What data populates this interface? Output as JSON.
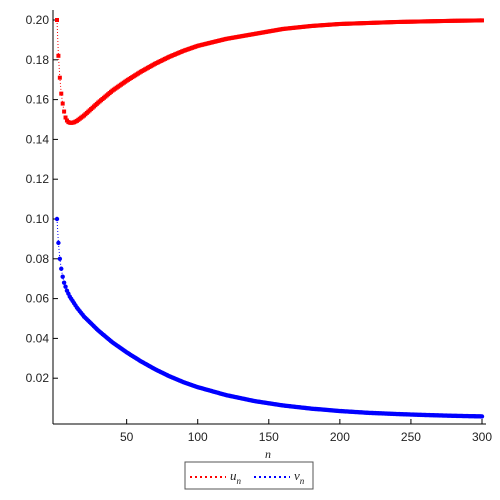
{
  "chart_data": {
    "type": "scatter",
    "title": "",
    "xlabel": "n",
    "ylabel": "",
    "xlim": [
      1,
      300
    ],
    "ylim": [
      0,
      0.2
    ],
    "x_ticks": [
      50,
      100,
      150,
      200,
      250,
      300
    ],
    "y_ticks": [
      0.02,
      0.04,
      0.06,
      0.08,
      0.1,
      0.12,
      0.14,
      0.16,
      0.18,
      0.2
    ],
    "y_tick_labels": [
      "0.02",
      "0.04",
      "0.06",
      "0.08",
      "0.10",
      "0.12",
      "0.14",
      "0.16",
      "0.18",
      "0.20"
    ],
    "x_tick_labels": [
      "50",
      "100",
      "150",
      "200",
      "250",
      "300"
    ],
    "grid": false,
    "legend_position": "bottom-center",
    "series": [
      {
        "name": "u",
        "subscript": "n",
        "color": "#ff0000",
        "marker": "square",
        "points": [
          [
            1,
            0.2
          ],
          [
            2,
            0.182
          ],
          [
            3,
            0.171
          ],
          [
            4,
            0.163
          ],
          [
            5,
            0.158
          ],
          [
            6,
            0.154
          ],
          [
            7,
            0.151
          ],
          [
            8,
            0.1495
          ],
          [
            9,
            0.1487
          ],
          [
            10,
            0.1484
          ],
          [
            11,
            0.1483
          ],
          [
            12,
            0.1484
          ],
          [
            13,
            0.1486
          ],
          [
            15,
            0.1493
          ],
          [
            20,
            0.152
          ],
          [
            30,
            0.1585
          ],
          [
            40,
            0.1645
          ],
          [
            50,
            0.1695
          ],
          [
            60,
            0.174
          ],
          [
            70,
            0.178
          ],
          [
            80,
            0.1815
          ],
          [
            90,
            0.1845
          ],
          [
            100,
            0.187
          ],
          [
            120,
            0.1905
          ],
          [
            140,
            0.193
          ],
          [
            160,
            0.1955
          ],
          [
            180,
            0.197
          ],
          [
            200,
            0.198
          ],
          [
            220,
            0.1985
          ],
          [
            240,
            0.199
          ],
          [
            260,
            0.1993
          ],
          [
            280,
            0.1996
          ],
          [
            300,
            0.1998
          ]
        ]
      },
      {
        "name": "v",
        "subscript": "n",
        "color": "#0000ff",
        "marker": "circle",
        "points": [
          [
            1,
            0.1
          ],
          [
            2,
            0.088
          ],
          [
            3,
            0.08
          ],
          [
            4,
            0.075
          ],
          [
            5,
            0.071
          ],
          [
            6,
            0.068
          ],
          [
            7,
            0.066
          ],
          [
            8,
            0.064
          ],
          [
            10,
            0.061
          ],
          [
            15,
            0.0555
          ],
          [
            20,
            0.051
          ],
          [
            30,
            0.044
          ],
          [
            40,
            0.038
          ],
          [
            50,
            0.033
          ],
          [
            60,
            0.0285
          ],
          [
            70,
            0.0245
          ],
          [
            80,
            0.021
          ],
          [
            90,
            0.018
          ],
          [
            100,
            0.0155
          ],
          [
            120,
            0.0115
          ],
          [
            140,
            0.0085
          ],
          [
            160,
            0.0063
          ],
          [
            180,
            0.0047
          ],
          [
            200,
            0.0035
          ],
          [
            220,
            0.0026
          ],
          [
            240,
            0.002
          ],
          [
            260,
            0.0015
          ],
          [
            280,
            0.0011
          ],
          [
            300,
            0.0008
          ]
        ]
      }
    ]
  }
}
